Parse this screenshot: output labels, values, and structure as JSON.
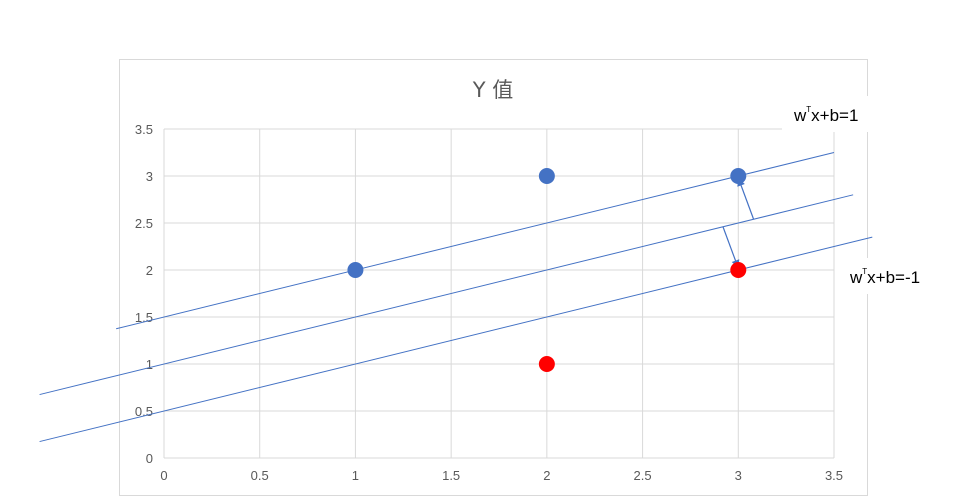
{
  "chart_data": {
    "type": "scatter",
    "title": "Y 值",
    "xlabel": "",
    "ylabel": "",
    "xlim": [
      0,
      3.5
    ],
    "ylim": [
      0,
      3.5
    ],
    "x_ticks": [
      "0",
      "0.5",
      "1",
      "1.5",
      "2",
      "2.5",
      "3",
      "3.5"
    ],
    "y_ticks": [
      "0",
      "0.5",
      "1",
      "1.5",
      "2",
      "2.5",
      "3",
      "3.5"
    ],
    "grid": true,
    "series": [
      {
        "color": "#4472C4",
        "points": [
          {
            "x": 1,
            "y": 2
          },
          {
            "x": 2,
            "y": 3
          },
          {
            "x": 3,
            "y": 3
          }
        ]
      },
      {
        "color": "#FF0000",
        "points": [
          {
            "x": 2,
            "y": 1
          },
          {
            "x": 3,
            "y": 2
          }
        ]
      }
    ],
    "lines": [
      {
        "slope": 0.5,
        "intercept": 1.5,
        "x_range": [
          -0.25,
          3.5
        ]
      },
      {
        "slope": 0.5,
        "intercept": 1.0,
        "x_range": [
          -0.65,
          3.6
        ]
      },
      {
        "slope": 0.5,
        "intercept": 0.5,
        "x_range": [
          -0.65,
          3.7
        ]
      }
    ],
    "margin_arrows": [
      {
        "from": [
          3.08,
          2.54
        ],
        "to": [
          3.0,
          2.98
        ]
      },
      {
        "from": [
          2.92,
          2.46
        ],
        "to": [
          3.0,
          2.02
        ]
      }
    ],
    "annotations": [
      {
        "text_base": "w",
        "text_sup": "T",
        "text_rest": "x+b=1"
      },
      {
        "text_base": "w",
        "text_sup": "T",
        "text_rest": "x+b=-1"
      }
    ],
    "line_color": "#4472C4"
  }
}
